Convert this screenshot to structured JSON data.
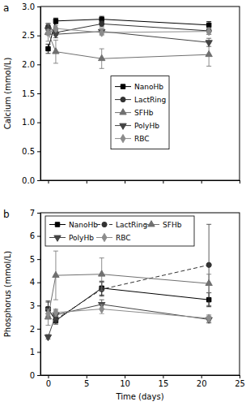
{
  "chart_data": [
    {
      "type": "line",
      "title": "a",
      "y_label": "Calcium (mmol/L)",
      "x": [
        0,
        1,
        7,
        21
      ],
      "xlim": [
        -1,
        25
      ],
      "xticks": [
        0,
        5,
        10,
        15,
        20,
        25
      ],
      "ylim": [
        0,
        3.0
      ],
      "yticks": [
        {
          "value": 0,
          "label": "0.0"
        },
        0.5,
        {
          "value": 1,
          "label": "1.0"
        },
        1.5,
        {
          "value": 2,
          "label": "2.0"
        },
        2.5,
        {
          "value": 3,
          "label": "3.0"
        }
      ],
      "tick_labels": "y",
      "legend": "center",
      "series": [
        {
          "name": "NanoHb",
          "color": "#000000",
          "marker": "square",
          "line_style": "solid",
          "values": [
            2.27,
            2.75,
            2.78,
            2.68
          ],
          "errors": [
            0.08,
            0.05,
            0.05,
            0.06
          ]
        },
        {
          "name": "LactRing",
          "color": "#333333",
          "marker": "circle",
          "line_style": "solid",
          "values": [
            2.65,
            2.55,
            2.7,
            2.58
          ],
          "errors": [
            0.06,
            0.05,
            0.05,
            0.06
          ]
        },
        {
          "name": "SFHb",
          "color": "#707070",
          "marker": "triangle-up",
          "line_style": "solid",
          "values": [
            2.55,
            2.22,
            2.1,
            2.17
          ],
          "errors": [
            0.15,
            0.2,
            0.17,
            0.2
          ]
        },
        {
          "name": "PolyHb",
          "color": "#444444",
          "marker": "triangle-down",
          "line_style": "solid",
          "values": [
            2.6,
            2.52,
            2.57,
            2.38
          ],
          "errors": [
            0.05,
            0.06,
            0.05,
            0.07
          ]
        },
        {
          "name": "RBC",
          "color": "#8c8c8c",
          "marker": "diamond",
          "line_style": "solid",
          "values": [
            2.55,
            2.62,
            2.55,
            2.57
          ],
          "errors": [
            0.05,
            0.05,
            0.05,
            0.05
          ]
        }
      ]
    },
    {
      "type": "line",
      "title": "b",
      "y_label": "Phosphorus (mmol/L)",
      "x_label": "Time (days)",
      "x": [
        0,
        1,
        7,
        21
      ],
      "xlim": [
        -1,
        25
      ],
      "xticks": [
        0,
        5,
        10,
        15,
        20,
        25
      ],
      "ylim": [
        0,
        7
      ],
      "yticks": [
        0,
        1,
        2,
        3,
        4,
        5,
        6,
        7
      ],
      "legend": "top",
      "series": [
        {
          "name": "NanoHb",
          "color": "#000000",
          "marker": "square",
          "line_style": "solid",
          "values": [
            2.85,
            2.35,
            3.75,
            3.25
          ],
          "errors": [
            0.3,
            0.15,
            0.3,
            0.3
          ]
        },
        {
          "name": "LactRing",
          "color": "#333333",
          "marker": "circle",
          "line_style": "dashed",
          "values": [
            2.85,
            2.4,
            3.7,
            4.75
          ],
          "errors": [
            0.35,
            0.15,
            0.3,
            1.75
          ]
        },
        {
          "name": "SFHb",
          "color": "#707070",
          "marker": "triangle-up",
          "line_style": "solid",
          "values": [
            2.5,
            4.3,
            4.35,
            3.95
          ],
          "errors": [
            0.35,
            1.05,
            0.7,
            0.4
          ]
        },
        {
          "name": "PolyHb",
          "color": "#444444",
          "marker": "triangle-down",
          "line_style": "solid",
          "values": [
            1.65,
            2.6,
            3.05,
            2.4
          ],
          "errors": [
            0.1,
            0.2,
            0.2,
            0.15
          ]
        },
        {
          "name": "RBC",
          "color": "#8c8c8c",
          "marker": "diamond",
          "line_style": "solid",
          "values": [
            2.65,
            2.7,
            2.85,
            2.45
          ],
          "errors": [
            0.2,
            0.15,
            0.2,
            0.15
          ]
        }
      ]
    }
  ]
}
